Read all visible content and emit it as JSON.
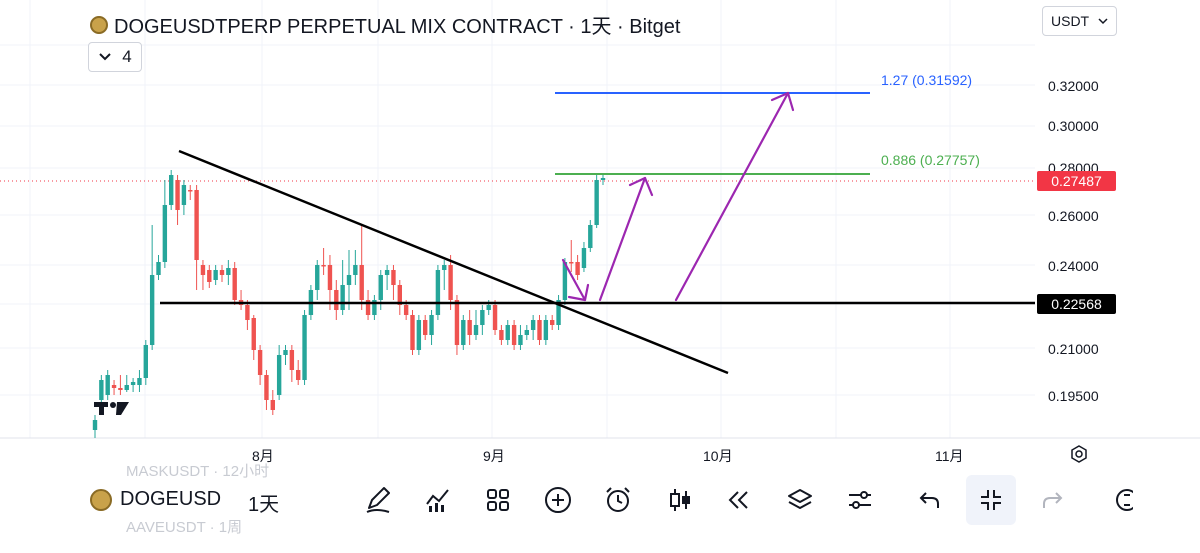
{
  "header": {
    "symbol_title": "DOGEUSDTPERP PERPETUAL MIX CONTRACT · 1天 · Bitget",
    "indicator_count": "4",
    "currency": "USDT"
  },
  "price_axis": {
    "ticks": [
      "0.32000",
      "0.30000",
      "0.28000",
      "0.26000",
      "0.24000",
      "0.21000",
      "0.19500"
    ],
    "last_price": "0.27487",
    "last_price_color": "#f23645",
    "horizontal_line_price": "0.22568"
  },
  "time_axis": {
    "ticks": [
      "8月",
      "9月",
      "10月",
      "11月"
    ]
  },
  "fib_levels": [
    {
      "label": "1.27 (0.31592)",
      "value": 0.31592,
      "color": "#2962ff"
    },
    {
      "label": "0.886 (0.27757)",
      "value": 0.27757,
      "color": "#4caf50"
    }
  ],
  "colors": {
    "up": "#26a69a",
    "down": "#ef5350",
    "arrows": "#9c27b0"
  },
  "watermark": "17",
  "ghost_rows": [
    "MASKUSDT · 12小时",
    "AAVEUSDT · 1周"
  ],
  "toolbar": {
    "symbol": "DOGEUSD",
    "interval": "1天",
    "tools": [
      "draw-icon",
      "indicators-icon",
      "templates-icon",
      "add-icon",
      "alert-icon",
      "candles-icon",
      "replay-icon",
      "layers-icon",
      "settings-icon",
      "undo-icon",
      "fullscreen-exit-icon",
      "redo-icon",
      "more-icon"
    ]
  },
  "chart_data": {
    "type": "candlestick",
    "instrument": "DOGEUSDTPERP",
    "timeframe": "1天",
    "y_ticks": [
      0.32,
      0.3,
      0.28,
      0.26,
      0.24,
      0.21,
      0.195
    ],
    "x_ticks": [
      "8月",
      "9月",
      "10月",
      "11月"
    ],
    "last_price": 0.27487,
    "horizontal_level": 0.22568,
    "fib_extension": [
      {
        "level": 1.27,
        "price": 0.31592
      },
      {
        "level": 0.886,
        "price": 0.27757
      }
    ],
    "trendline": {
      "from_price": 0.288,
      "to_price": 0.197
    }
  }
}
